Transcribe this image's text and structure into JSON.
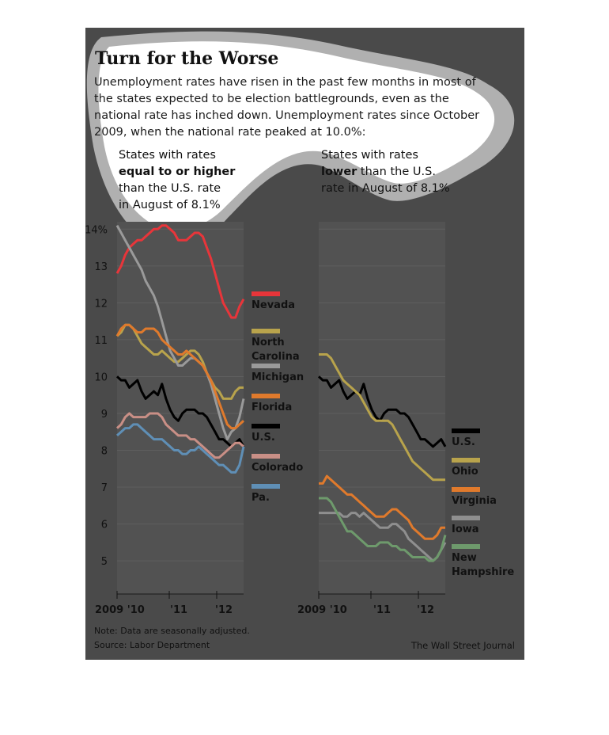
{
  "title": "Turn for the Worse",
  "subtitle": "Unemployment rates have risen in the past few months in most of the states expected to be election battlegrounds, even as the national rate has inched down. Unemployment rates since October 2009, when the national rate peaked at 10.0%:",
  "left_group": {
    "line1": "States with rates",
    "bold": "equal to or higher",
    "line3": "than the U.S. rate",
    "line4a": "in August of ",
    "line4b": "8.1%"
  },
  "right_group": {
    "line1": "States with rates",
    "bold": "lower",
    "line2rest": " than the U.S.",
    "line3a": "rate in August of ",
    "line3b": "8.1%"
  },
  "note": "Note: Data are seasonally adjusted.",
  "source": "Source: Labor Department",
  "credit": "The Wall Street Journal",
  "chart_data": [
    {
      "type": "line",
      "y_ticks": [
        "14%",
        "13",
        "12",
        "11",
        "10",
        "9",
        "8",
        "7",
        "6",
        "5"
      ],
      "x_tick_labels": [
        "2009 '10",
        "'11",
        "'12"
      ],
      "ylim": [
        4.1,
        14.2
      ],
      "x_start": "2009-10",
      "grid": true,
      "series": [
        {
          "name": "Nevada",
          "color": "#e8353a",
          "values": [
            12.8,
            13.0,
            13.3,
            13.5,
            13.6,
            13.7,
            13.7,
            13.8,
            13.9,
            14.0,
            14.0,
            14.1,
            14.1,
            14.0,
            13.9,
            13.7,
            13.7,
            13.7,
            13.8,
            13.9,
            13.9,
            13.8,
            13.5,
            13.2,
            12.8,
            12.4,
            12.0,
            11.8,
            11.6,
            11.6,
            11.9,
            12.1
          ]
        },
        {
          "name": "North Carolina",
          "color": "#b8a34c",
          "values": [
            11.1,
            11.2,
            11.4,
            11.4,
            11.3,
            11.1,
            10.9,
            10.8,
            10.7,
            10.6,
            10.6,
            10.7,
            10.6,
            10.5,
            10.4,
            10.4,
            10.5,
            10.6,
            10.7,
            10.7,
            10.6,
            10.4,
            10.1,
            9.9,
            9.7,
            9.6,
            9.4,
            9.4,
            9.4,
            9.6,
            9.7,
            9.7
          ]
        },
        {
          "name": "Michigan",
          "color": "#9a9a9a",
          "values": [
            14.1,
            13.9,
            13.7,
            13.5,
            13.3,
            13.1,
            12.9,
            12.6,
            12.4,
            12.2,
            11.9,
            11.5,
            11.1,
            10.7,
            10.5,
            10.3,
            10.3,
            10.4,
            10.5,
            10.5,
            10.4,
            10.3,
            10.1,
            9.8,
            9.4,
            9.0,
            8.6,
            8.3,
            8.5,
            8.6,
            8.9,
            9.4
          ]
        },
        {
          "name": "Florida",
          "color": "#e07a2c",
          "values": [
            11.1,
            11.3,
            11.4,
            11.4,
            11.3,
            11.2,
            11.2,
            11.3,
            11.3,
            11.3,
            11.2,
            11.0,
            10.9,
            10.8,
            10.7,
            10.6,
            10.6,
            10.7,
            10.6,
            10.5,
            10.4,
            10.3,
            10.1,
            9.9,
            9.6,
            9.3,
            9.0,
            8.7,
            8.6,
            8.6,
            8.7,
            8.8
          ]
        },
        {
          "name": "U.S.",
          "color": "#000000",
          "values": [
            10.0,
            9.9,
            9.9,
            9.7,
            9.8,
            9.9,
            9.6,
            9.4,
            9.5,
            9.6,
            9.5,
            9.8,
            9.4,
            9.1,
            8.9,
            8.8,
            9.0,
            9.1,
            9.1,
            9.1,
            9.0,
            9.0,
            8.9,
            8.7,
            8.5,
            8.3,
            8.3,
            8.2,
            8.1,
            8.2,
            8.3,
            8.1
          ]
        },
        {
          "name": "Colorado",
          "color": "#c98f86",
          "values": [
            8.6,
            8.7,
            8.9,
            9.0,
            8.9,
            8.9,
            8.9,
            8.9,
            9.0,
            9.0,
            9.0,
            8.9,
            8.7,
            8.6,
            8.5,
            8.4,
            8.4,
            8.4,
            8.3,
            8.3,
            8.2,
            8.1,
            8.0,
            7.9,
            7.8,
            7.8,
            7.9,
            8.0,
            8.1,
            8.2,
            8.2,
            8.1
          ]
        },
        {
          "name": "Pa.",
          "color": "#5f8fb6",
          "values": [
            8.4,
            8.5,
            8.6,
            8.6,
            8.7,
            8.7,
            8.6,
            8.5,
            8.4,
            8.3,
            8.3,
            8.3,
            8.2,
            8.1,
            8.0,
            8.0,
            7.9,
            7.9,
            8.0,
            8.0,
            8.1,
            8.0,
            7.9,
            7.8,
            7.7,
            7.6,
            7.6,
            7.5,
            7.4,
            7.4,
            7.6,
            8.1
          ]
        }
      ]
    },
    {
      "type": "line",
      "x_tick_labels": [
        "2009 '10",
        "'11",
        "'12"
      ],
      "ylim": [
        4.1,
        14.2
      ],
      "x_start": "2009-10",
      "grid": true,
      "series": [
        {
          "name": "U.S.",
          "color": "#000000",
          "values": [
            10.0,
            9.9,
            9.9,
            9.7,
            9.8,
            9.9,
            9.6,
            9.4,
            9.5,
            9.6,
            9.5,
            9.8,
            9.4,
            9.1,
            8.9,
            8.8,
            9.0,
            9.1,
            9.1,
            9.1,
            9.0,
            9.0,
            8.9,
            8.7,
            8.5,
            8.3,
            8.3,
            8.2,
            8.1,
            8.2,
            8.3,
            8.1
          ]
        },
        {
          "name": "Ohio",
          "color": "#b8a34c",
          "values": [
            10.6,
            10.6,
            10.6,
            10.5,
            10.3,
            10.1,
            9.9,
            9.8,
            9.7,
            9.6,
            9.5,
            9.3,
            9.1,
            8.9,
            8.8,
            8.8,
            8.8,
            8.8,
            8.7,
            8.5,
            8.3,
            8.1,
            7.9,
            7.7,
            7.6,
            7.5,
            7.4,
            7.3,
            7.2,
            7.2,
            7.2,
            7.2
          ]
        },
        {
          "name": "Virginia",
          "color": "#e07a2c",
          "values": [
            7.1,
            7.1,
            7.3,
            7.2,
            7.1,
            7.0,
            6.9,
            6.8,
            6.8,
            6.7,
            6.6,
            6.5,
            6.4,
            6.3,
            6.2,
            6.2,
            6.2,
            6.3,
            6.4,
            6.4,
            6.3,
            6.2,
            6.1,
            5.9,
            5.8,
            5.7,
            5.6,
            5.6,
            5.6,
            5.7,
            5.9,
            5.9
          ]
        },
        {
          "name": "Iowa",
          "color": "#8f8f8f",
          "values": [
            6.3,
            6.3,
            6.3,
            6.3,
            6.3,
            6.3,
            6.2,
            6.2,
            6.3,
            6.3,
            6.2,
            6.3,
            6.2,
            6.1,
            6.0,
            5.9,
            5.9,
            5.9,
            6.0,
            6.0,
            5.9,
            5.8,
            5.6,
            5.5,
            5.4,
            5.3,
            5.2,
            5.1,
            5.0,
            5.1,
            5.3,
            5.5
          ]
        },
        {
          "name": "New Hampshire",
          "color": "#6e9a6c",
          "values": [
            6.7,
            6.7,
            6.7,
            6.6,
            6.4,
            6.2,
            6.0,
            5.8,
            5.8,
            5.7,
            5.6,
            5.5,
            5.4,
            5.4,
            5.4,
            5.5,
            5.5,
            5.5,
            5.4,
            5.4,
            5.3,
            5.3,
            5.2,
            5.1,
            5.1,
            5.1,
            5.1,
            5.0,
            5.0,
            5.1,
            5.3,
            5.7
          ]
        }
      ]
    }
  ]
}
